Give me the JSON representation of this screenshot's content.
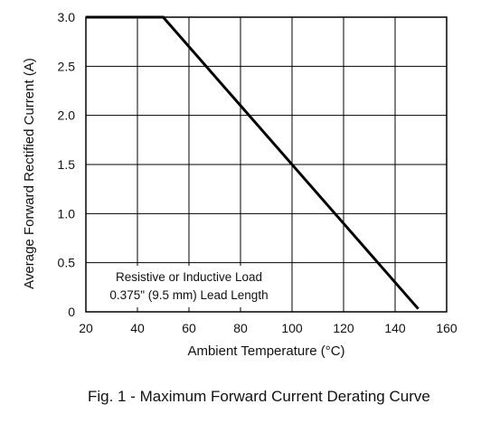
{
  "figure": {
    "caption": "Fig. 1 - Maximum Forward Current Derating Curve"
  },
  "chart_data": {
    "type": "line",
    "title": "",
    "xlabel": "Ambient Temperature (°C)",
    "ylabel": "Average Forward Rectified Current (A)",
    "xlim": [
      20,
      160
    ],
    "ylim": [
      0,
      3.0
    ],
    "x_ticks": [
      20,
      40,
      60,
      80,
      100,
      120,
      140,
      160
    ],
    "x_tick_labels": [
      "20",
      "40",
      "60",
      "80",
      "100",
      "120",
      "140",
      "160"
    ],
    "y_ticks": [
      0,
      0.5,
      1.0,
      1.5,
      2.0,
      2.5,
      3.0
    ],
    "y_tick_labels": [
      "0",
      "0.5",
      "1.0",
      "1.5",
      "2.0",
      "2.5",
      "3.0"
    ],
    "grid": true,
    "series": [
      {
        "x": [
          20,
          50,
          149
        ],
        "y": [
          3.0,
          3.0,
          0.03
        ],
        "color": "#000000"
      }
    ],
    "annotations": [
      "Resistive or Inductive Load",
      "0.375\" (9.5 mm) Lead Length"
    ]
  }
}
